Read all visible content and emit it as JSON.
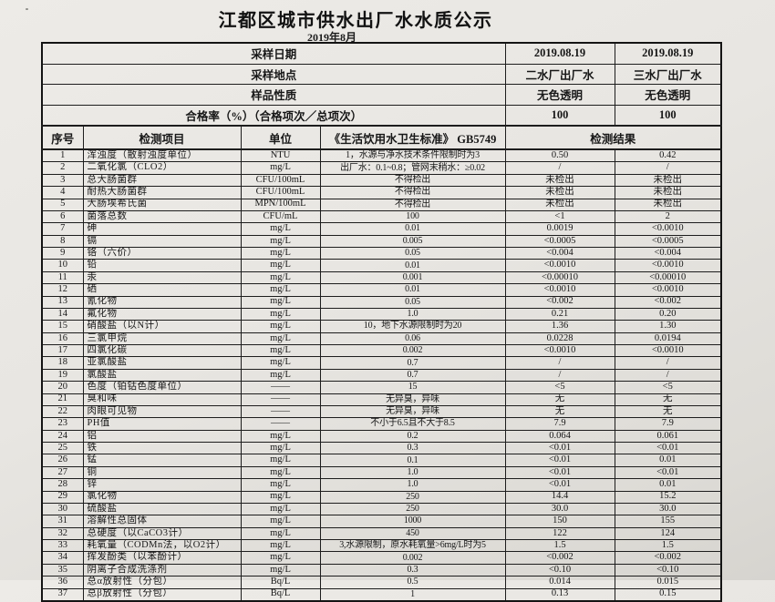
{
  "page": {
    "title": "江都区城市供水出厂水水质公示",
    "subtitle": "2019年8月"
  },
  "colors": {
    "paper": "#e8e6e2",
    "ink": "#1a1a1a"
  },
  "info_rows": [
    {
      "label": "采样日期",
      "plant2": "2019.08.19",
      "plant3": "2019.08.19"
    },
    {
      "label": "采样地点",
      "plant2": "二水厂出厂水",
      "plant3": "三水厂出厂水"
    },
    {
      "label": "样品性质",
      "plant2": "无色透明",
      "plant3": "无色透明"
    },
    {
      "label": "合格率（%）（合格项次／总项次）",
      "plant2": "100",
      "plant3": "100"
    }
  ],
  "columns": {
    "index": "序号",
    "item": "检测项目",
    "unit": "单位",
    "standard": "《生活饮用水卫生标准》 GB5749",
    "result": "检测结果"
  },
  "rows": [
    {
      "no": "1",
      "item": "浑浊度（散射浊度单位）",
      "unit": "NTU",
      "standard": "1，水源与净水技术条件限制时为3",
      "r1": "0.50",
      "r2": "0.42"
    },
    {
      "no": "2",
      "item": "二氧化氯（CLO2）",
      "unit": "mg/L",
      "standard": "出厂水：0.1~0.8；管网末稍水：≥0.02",
      "r1": "/",
      "r2": "/"
    },
    {
      "no": "3",
      "item": "总大肠菌群",
      "unit": "CFU/100mL",
      "standard": "不得检出",
      "r1": "未检出",
      "r2": "未检出"
    },
    {
      "no": "4",
      "item": "耐热大肠菌群",
      "unit": "CFU/100mL",
      "standard": "不得检出",
      "r1": "未检出",
      "r2": "未检出"
    },
    {
      "no": "5",
      "item": "大肠埃希氏菌",
      "unit": "MPN/100mL",
      "standard": "不得检出",
      "r1": "未检出",
      "r2": "未检出"
    },
    {
      "no": "6",
      "item": "菌落总数",
      "unit": "CFU/mL",
      "standard": "100",
      "r1": "<1",
      "r2": "2"
    },
    {
      "no": "7",
      "item": "砷",
      "unit": "mg/L",
      "standard": "0.01",
      "r1": "0.0019",
      "r2": "<0.0010"
    },
    {
      "no": "8",
      "item": "镉",
      "unit": "mg/L",
      "standard": "0.005",
      "r1": "<0.0005",
      "r2": "<0.0005"
    },
    {
      "no": "9",
      "item": "铬（六价）",
      "unit": "mg/L",
      "standard": "0.05",
      "r1": "<0.004",
      "r2": "<0.004"
    },
    {
      "no": "10",
      "item": "铅",
      "unit": "mg/L",
      "standard": "0.01",
      "r1": "<0.0010",
      "r2": "<0.0010"
    },
    {
      "no": "11",
      "item": "汞",
      "unit": "mg/L",
      "standard": "0.001",
      "r1": "<0.00010",
      "r2": "<0.00010"
    },
    {
      "no": "12",
      "item": "硒",
      "unit": "mg/L",
      "standard": "0.01",
      "r1": "<0.0010",
      "r2": "<0.0010"
    },
    {
      "no": "13",
      "item": "氰化物",
      "unit": "mg/L",
      "standard": "0.05",
      "r1": "<0.002",
      "r2": "<0.002"
    },
    {
      "no": "14",
      "item": "氟化物",
      "unit": "mg/L",
      "standard": "1.0",
      "r1": "0.21",
      "r2": "0.20"
    },
    {
      "no": "15",
      "item": "硝酸盐（以N计）",
      "unit": "mg/L",
      "standard": "10，地下水源限制时为20",
      "r1": "1.36",
      "r2": "1.30"
    },
    {
      "no": "16",
      "item": "三氯甲烷",
      "unit": "mg/L",
      "standard": "0.06",
      "r1": "0.0228",
      "r2": "0.0194"
    },
    {
      "no": "17",
      "item": "四氯化碳",
      "unit": "mg/L",
      "standard": "0.002",
      "r1": "<0.0010",
      "r2": "<0.0010"
    },
    {
      "no": "18",
      "item": "亚氯酸盐",
      "unit": "mg/L",
      "standard": "0.7",
      "r1": "/",
      "r2": "/"
    },
    {
      "no": "19",
      "item": "氯酸盐",
      "unit": "mg/L",
      "standard": "0.7",
      "r1": "/",
      "r2": "/"
    },
    {
      "no": "20",
      "item": "色度（铂钴色度单位）",
      "unit": "——",
      "standard": "15",
      "r1": "<5",
      "r2": "<5"
    },
    {
      "no": "21",
      "item": "臭和味",
      "unit": "——",
      "standard": "无异臭，异味",
      "r1": "无",
      "r2": "无"
    },
    {
      "no": "22",
      "item": "肉眼可见物",
      "unit": "——",
      "standard": "无异臭，异味",
      "r1": "无",
      "r2": "无"
    },
    {
      "no": "23",
      "item": "PH值",
      "unit": "——",
      "standard": "不小于6.5且不大于8.5",
      "r1": "7.9",
      "r2": "7.9"
    },
    {
      "no": "24",
      "item": "铝",
      "unit": "mg/L",
      "standard": "0.2",
      "r1": "0.064",
      "r2": "0.061"
    },
    {
      "no": "25",
      "item": "铁",
      "unit": "mg/L",
      "standard": "0.3",
      "r1": "<0.01",
      "r2": "<0.01"
    },
    {
      "no": "26",
      "item": "锰",
      "unit": "mg/L",
      "standard": "0.1",
      "r1": "<0.01",
      "r2": "0.01"
    },
    {
      "no": "27",
      "item": "铜",
      "unit": "mg/L",
      "standard": "1.0",
      "r1": "<0.01",
      "r2": "<0.01"
    },
    {
      "no": "28",
      "item": "锌",
      "unit": "mg/L",
      "standard": "1.0",
      "r1": "<0.01",
      "r2": "0.01"
    },
    {
      "no": "29",
      "item": "氯化物",
      "unit": "mg/L",
      "standard": "250",
      "r1": "14.4",
      "r2": "15.2"
    },
    {
      "no": "30",
      "item": "硫酸盐",
      "unit": "mg/L",
      "standard": "250",
      "r1": "30.0",
      "r2": "30.0"
    },
    {
      "no": "31",
      "item": "溶解性总固体",
      "unit": "mg/L",
      "standard": "1000",
      "r1": "150",
      "r2": "155"
    },
    {
      "no": "32",
      "item": "总硬度（以CaCO3计）",
      "unit": "mg/L",
      "standard": "450",
      "r1": "122",
      "r2": "124"
    },
    {
      "no": "33",
      "item": "耗氧量（CODMn法，以O2计）",
      "unit": "mg/L",
      "standard": "3,水源限制，原水耗氧量>6mg/L时为5",
      "r1": "1.5",
      "r2": "1.5"
    },
    {
      "no": "34",
      "item": "挥发酚类（以苯酚计）",
      "unit": "mg/L",
      "standard": "0.002",
      "r1": "<0.002",
      "r2": "<0.002"
    },
    {
      "no": "35",
      "item": "阴离子合成洗涤剂",
      "unit": "mg/L",
      "standard": "0.3",
      "r1": "<0.10",
      "r2": "<0.10"
    },
    {
      "no": "36",
      "item": "总α放射性（分包）",
      "unit": "Bq/L",
      "standard": "0.5",
      "r1": "0.014",
      "r2": "0.015"
    },
    {
      "no": "37",
      "item": "总β放射性（分包）",
      "unit": "Bq/L",
      "standard": "1",
      "r1": "0.13",
      "r2": "0.15"
    }
  ]
}
